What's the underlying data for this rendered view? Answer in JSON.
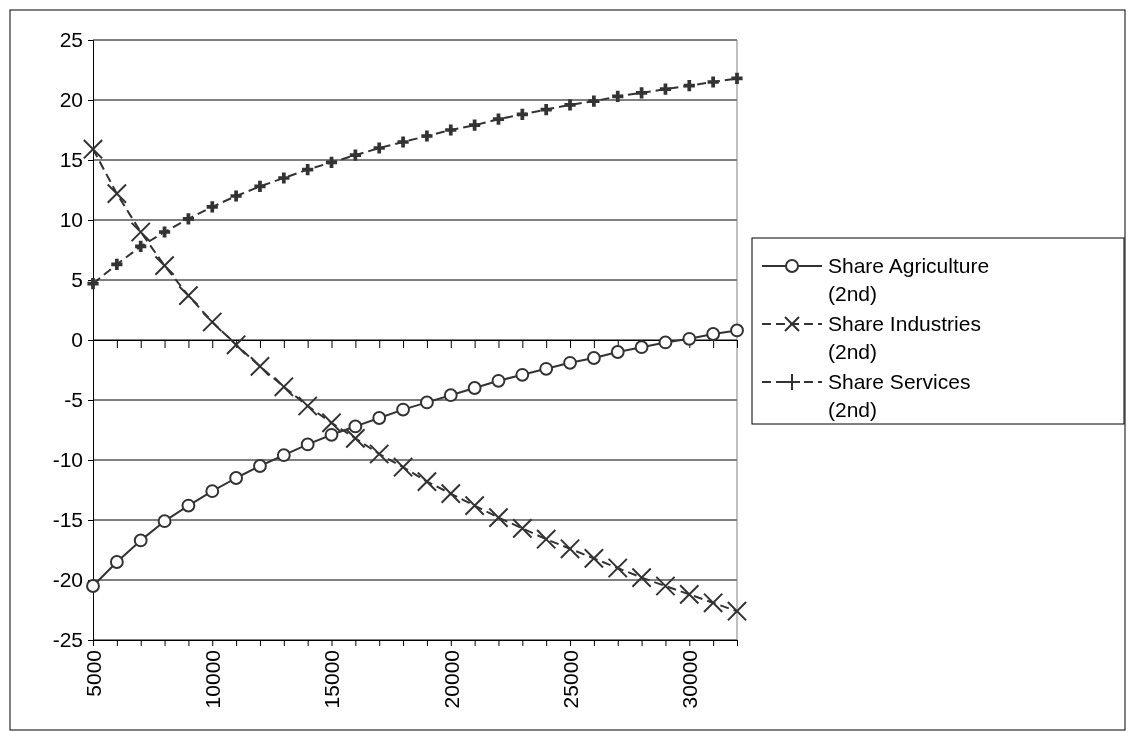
{
  "chart_data": {
    "type": "line",
    "x": [
      5000,
      6000,
      7000,
      8000,
      9000,
      10000,
      11000,
      12000,
      13000,
      14000,
      15000,
      16000,
      17000,
      18000,
      19000,
      20000,
      21000,
      22000,
      23000,
      24000,
      25000,
      26000,
      27000,
      28000,
      29000,
      30000,
      31000,
      32000
    ],
    "xlim": [
      5000,
      32000
    ],
    "xticks": [
      5000,
      {
        "value": 6000,
        "label": null
      },
      {
        "value": 7000,
        "label": null
      },
      {
        "value": 8000,
        "label": null
      },
      {
        "value": 9000,
        "label": null
      },
      10000,
      {
        "value": 11000,
        "label": null
      },
      {
        "value": 12000,
        "label": null
      },
      {
        "value": 13000,
        "label": null
      },
      {
        "value": 14000,
        "label": null
      },
      15000,
      {
        "value": 16000,
        "label": null
      },
      {
        "value": 17000,
        "label": null
      },
      {
        "value": 18000,
        "label": null
      },
      {
        "value": 19000,
        "label": null
      },
      20000,
      {
        "value": 21000,
        "label": null
      },
      {
        "value": 22000,
        "label": null
      },
      {
        "value": 23000,
        "label": null
      },
      {
        "value": 24000,
        "label": null
      },
      25000,
      {
        "value": 26000,
        "label": null
      },
      {
        "value": 27000,
        "label": null
      },
      {
        "value": 28000,
        "label": null
      },
      {
        "value": 29000,
        "label": null
      },
      30000,
      {
        "value": 31000,
        "label": null
      },
      {
        "value": 32000,
        "label": null
      }
    ],
    "ylim": [
      -25,
      25
    ],
    "yticks": [
      -25,
      -20,
      -15,
      -10,
      -5,
      0,
      5,
      10,
      15,
      20,
      25
    ],
    "grid": "y",
    "legend": "right",
    "series": [
      {
        "name": "Share Agriculture (2nd)",
        "color": "#333333",
        "marker": "circle",
        "line_style": "solid",
        "values": [
          -20.5,
          -18.5,
          -16.7,
          -15.1,
          -13.8,
          -12.6,
          -11.5,
          -10.5,
          -9.6,
          -8.7,
          -7.9,
          -7.2,
          -6.5,
          -5.8,
          -5.2,
          -4.6,
          -4.0,
          -3.4,
          -2.9,
          -2.4,
          -1.9,
          -1.5,
          -1.0,
          -0.6,
          -0.2,
          0.1,
          0.5,
          0.8
        ]
      },
      {
        "name": "Share Industries (2nd)",
        "color": "#333333",
        "marker": "x",
        "line_style": "dashed",
        "values": [
          15.9,
          12.2,
          9.0,
          6.2,
          3.7,
          1.5,
          -0.4,
          -2.2,
          -3.9,
          -5.5,
          -6.9,
          -8.2,
          -9.5,
          -10.6,
          -11.8,
          -12.8,
          -13.8,
          -14.8,
          -15.7,
          -16.6,
          -17.4,
          -18.2,
          -19.0,
          -19.8,
          -20.5,
          -21.2,
          -21.9,
          -22.6
        ]
      },
      {
        "name": "Share Services (2nd)",
        "color": "#333333",
        "marker": "cross",
        "line_style": "dashed",
        "values": [
          4.7,
          6.3,
          7.8,
          9.0,
          10.1,
          11.1,
          12.0,
          12.8,
          13.5,
          14.2,
          14.8,
          15.4,
          16.0,
          16.5,
          17.0,
          17.5,
          17.9,
          18.4,
          18.8,
          19.2,
          19.6,
          19.9,
          20.3,
          20.6,
          20.9,
          21.2,
          21.5,
          21.8
        ]
      }
    ]
  }
}
